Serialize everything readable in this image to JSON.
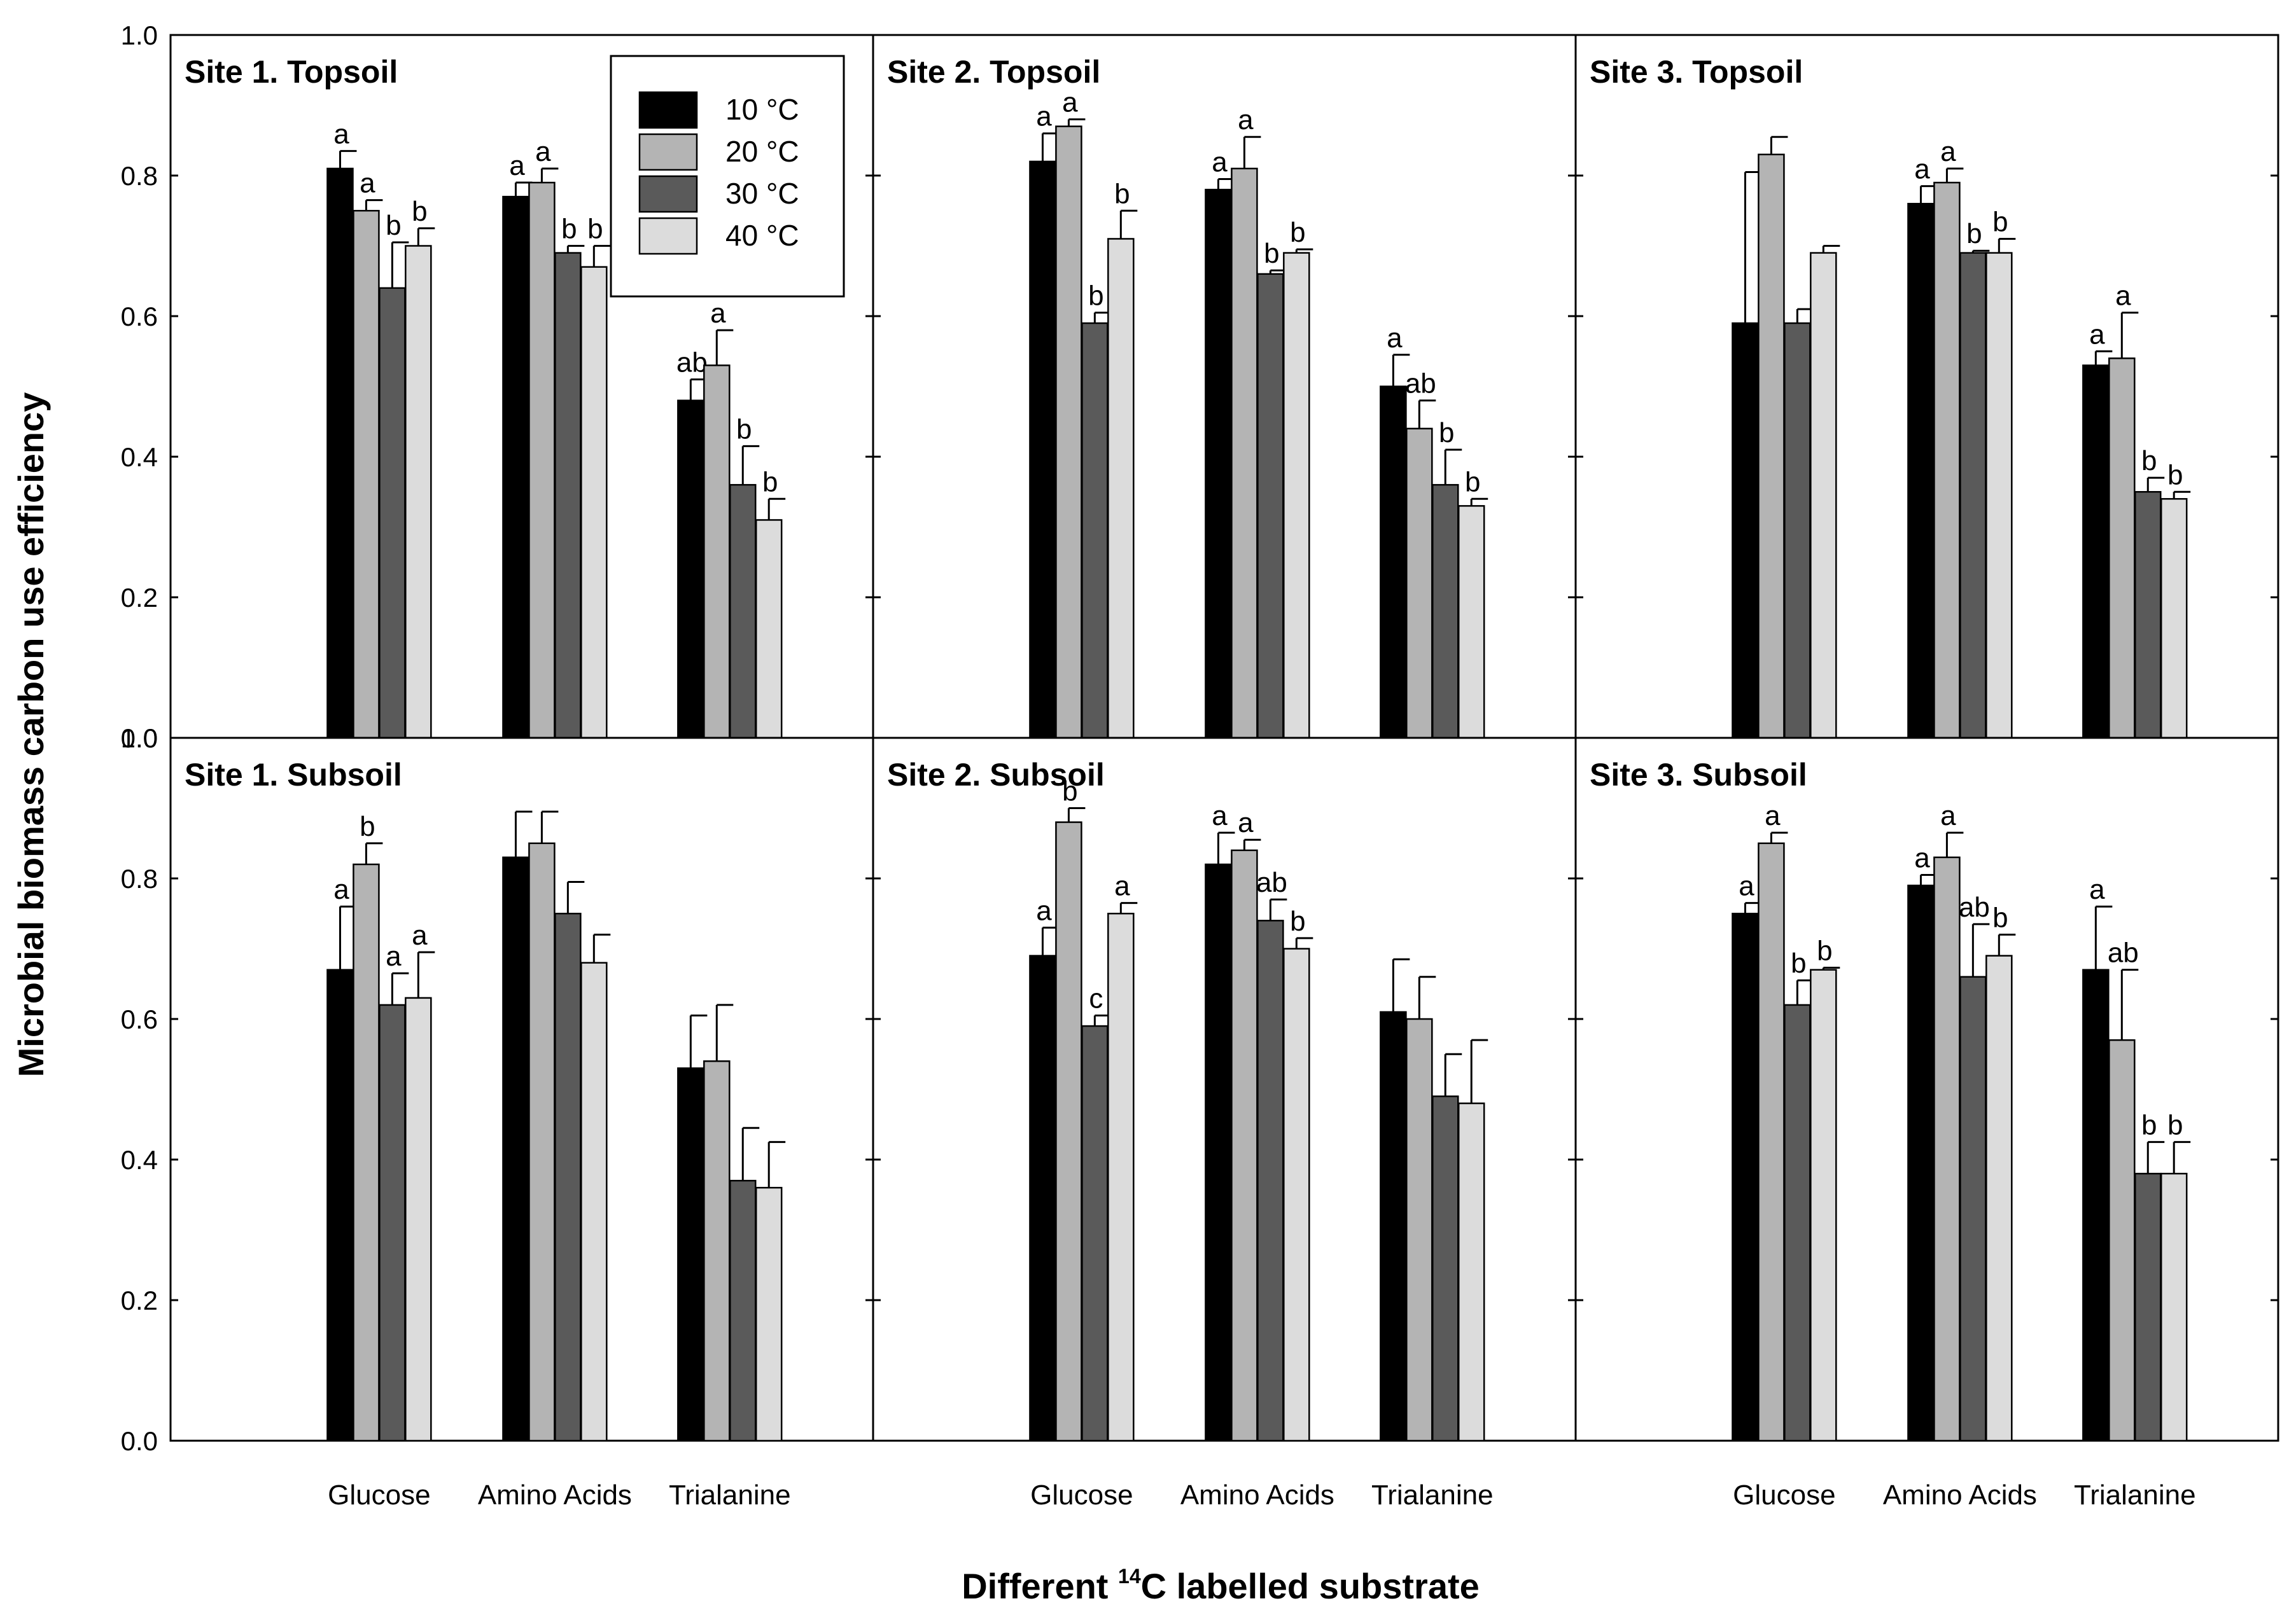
{
  "figure": {
    "ylabel": "Microbial biomass carbon use efficiency",
    "xlabel_prefix": "Different ",
    "xlabel_superscript": "14",
    "xlabel_suffix": "C labelled substrate"
  },
  "legend": {
    "entries": [
      {
        "label": "10 °C",
        "color": "#000000"
      },
      {
        "label": "20 °C",
        "color": "#b4b4b4"
      },
      {
        "label": "30 °C",
        "color": "#5a5a5a"
      },
      {
        "label": "40 °C",
        "color": "#dcdcdc"
      }
    ]
  },
  "chart_data": [
    {
      "type": "bar",
      "title": "Site 1. Topsoil",
      "categories": [
        "Glucose",
        "Amino Acids",
        "Trialanine"
      ],
      "ylim": [
        0,
        1.0
      ],
      "yticks": [
        "0.0",
        "0.2",
        "0.4",
        "0.6",
        "0.8",
        "1.0"
      ],
      "series": [
        {
          "name": "10 °C",
          "values": [
            0.81,
            0.77,
            0.48
          ],
          "errors": [
            0.025,
            0.02,
            0.03
          ],
          "letters": [
            "a",
            "a",
            "ab"
          ]
        },
        {
          "name": "20 °C",
          "values": [
            0.75,
            0.79,
            0.53
          ],
          "errors": [
            0.015,
            0.02,
            0.05
          ],
          "letters": [
            "a",
            "a",
            "a"
          ]
        },
        {
          "name": "30 °C",
          "values": [
            0.64,
            0.69,
            0.36
          ],
          "errors": [
            0.065,
            0.01,
            0.055
          ],
          "letters": [
            "b",
            "b",
            "b"
          ]
        },
        {
          "name": "40 °C",
          "values": [
            0.7,
            0.67,
            0.31
          ],
          "errors": [
            0.025,
            0.03,
            0.03
          ],
          "letters": [
            "b",
            "b",
            "b"
          ]
        }
      ]
    },
    {
      "type": "bar",
      "title": "Site 2. Topsoil",
      "categories": [
        "Glucose",
        "Amino Acids",
        "Trialanine"
      ],
      "ylim": [
        0,
        1.0
      ],
      "yticks": [
        "0.0",
        "0.2",
        "0.4",
        "0.6",
        "0.8",
        "1.0"
      ],
      "series": [
        {
          "name": "10 °C",
          "values": [
            0.82,
            0.78,
            0.5
          ],
          "errors": [
            0.04,
            0.015,
            0.045
          ],
          "letters": [
            "a",
            "a",
            "a"
          ]
        },
        {
          "name": "20 °C",
          "values": [
            0.87,
            0.81,
            0.44
          ],
          "errors": [
            0.01,
            0.045,
            0.04
          ],
          "letters": [
            "a",
            "a",
            "ab"
          ]
        },
        {
          "name": "30 °C",
          "values": [
            0.59,
            0.66,
            0.36
          ],
          "errors": [
            0.015,
            0.005,
            0.05
          ],
          "letters": [
            "b",
            "b",
            "b"
          ]
        },
        {
          "name": "40 °C",
          "values": [
            0.71,
            0.69,
            0.33
          ],
          "errors": [
            0.04,
            0.005,
            0.01
          ],
          "letters": [
            "b",
            "b",
            "b"
          ]
        }
      ]
    },
    {
      "type": "bar",
      "title": "Site 3. Topsoil",
      "categories": [
        "Glucose",
        "Amino Acids",
        "Trialanine"
      ],
      "ylim": [
        0,
        1.0
      ],
      "yticks": [
        "0.0",
        "0.2",
        "0.4",
        "0.6",
        "0.8",
        "1.0"
      ],
      "series": [
        {
          "name": "10 °C",
          "values": [
            0.59,
            0.76,
            0.53
          ],
          "errors": [
            0.215,
            0.025,
            0.02
          ],
          "letters": [
            "",
            "a",
            "a"
          ]
        },
        {
          "name": "20 °C",
          "values": [
            0.83,
            0.79,
            0.54
          ],
          "errors": [
            0.025,
            0.02,
            0.065
          ],
          "letters": [
            "",
            "a",
            "a"
          ]
        },
        {
          "name": "30 °C",
          "values": [
            0.59,
            0.69,
            0.35
          ],
          "errors": [
            0.02,
            0.003,
            0.02
          ],
          "letters": [
            "",
            "b",
            "b"
          ]
        },
        {
          "name": "40 °C",
          "values": [
            0.69,
            0.69,
            0.34
          ],
          "errors": [
            0.01,
            0.02,
            0.01
          ],
          "letters": [
            "",
            "b",
            "b"
          ]
        }
      ]
    },
    {
      "type": "bar",
      "title": "Site 1. Subsoil",
      "categories": [
        "Glucose",
        "Amino Acids",
        "Trialanine"
      ],
      "ylim": [
        0,
        1.0
      ],
      "yticks": [
        "0.0",
        "0.2",
        "0.4",
        "0.6",
        "0.8",
        "1.0"
      ],
      "series": [
        {
          "name": "10 °C",
          "values": [
            0.67,
            0.83,
            0.53
          ],
          "errors": [
            0.09,
            0.065,
            0.075
          ],
          "letters": [
            "a",
            "",
            ""
          ]
        },
        {
          "name": "20 °C",
          "values": [
            0.82,
            0.85,
            0.54
          ],
          "errors": [
            0.03,
            0.045,
            0.08
          ],
          "letters": [
            "b",
            "",
            ""
          ]
        },
        {
          "name": "30 °C",
          "values": [
            0.62,
            0.75,
            0.37
          ],
          "errors": [
            0.045,
            0.045,
            0.075
          ],
          "letters": [
            "a",
            "",
            ""
          ]
        },
        {
          "name": "40 °C",
          "values": [
            0.63,
            0.68,
            0.36
          ],
          "errors": [
            0.065,
            0.04,
            0.065
          ],
          "letters": [
            "a",
            "",
            ""
          ]
        }
      ]
    },
    {
      "type": "bar",
      "title": "Site 2. Subsoil",
      "categories": [
        "Glucose",
        "Amino Acids",
        "Trialanine"
      ],
      "ylim": [
        0,
        1.0
      ],
      "yticks": [
        "0.0",
        "0.2",
        "0.4",
        "0.6",
        "0.8",
        "1.0"
      ],
      "series": [
        {
          "name": "10 °C",
          "values": [
            0.69,
            0.82,
            0.61
          ],
          "errors": [
            0.04,
            0.045,
            0.075
          ],
          "letters": [
            "a",
            "a",
            ""
          ]
        },
        {
          "name": "20 °C",
          "values": [
            0.88,
            0.84,
            0.6
          ],
          "errors": [
            0.02,
            0.015,
            0.06
          ],
          "letters": [
            "b",
            "a",
            ""
          ]
        },
        {
          "name": "30 °C",
          "values": [
            0.59,
            0.74,
            0.49
          ],
          "errors": [
            0.015,
            0.03,
            0.06
          ],
          "letters": [
            "c",
            "ab",
            ""
          ]
        },
        {
          "name": "40 °C",
          "values": [
            0.75,
            0.7,
            0.48
          ],
          "errors": [
            0.015,
            0.015,
            0.09
          ],
          "letters": [
            "a",
            "b",
            ""
          ]
        }
      ]
    },
    {
      "type": "bar",
      "title": "Site 3. Subsoil",
      "categories": [
        "Glucose",
        "Amino Acids",
        "Trialanine"
      ],
      "ylim": [
        0,
        1.0
      ],
      "yticks": [
        "0.0",
        "0.2",
        "0.4",
        "0.6",
        "0.8",
        "1.0"
      ],
      "series": [
        {
          "name": "10 °C",
          "values": [
            0.75,
            0.79,
            0.67
          ],
          "errors": [
            0.015,
            0.015,
            0.09
          ],
          "letters": [
            "a",
            "a",
            "a"
          ]
        },
        {
          "name": "20 °C",
          "values": [
            0.85,
            0.83,
            0.57
          ],
          "errors": [
            0.015,
            0.035,
            0.1
          ],
          "letters": [
            "a",
            "a",
            "ab"
          ]
        },
        {
          "name": "30 °C",
          "values": [
            0.62,
            0.66,
            0.38
          ],
          "errors": [
            0.035,
            0.075,
            0.045
          ],
          "letters": [
            "b",
            "ab",
            "b"
          ]
        },
        {
          "name": "40 °C",
          "values": [
            0.67,
            0.69,
            0.38
          ],
          "errors": [
            0.003,
            0.03,
            0.045
          ],
          "letters": [
            "b",
            "b",
            "b"
          ]
        }
      ]
    }
  ]
}
